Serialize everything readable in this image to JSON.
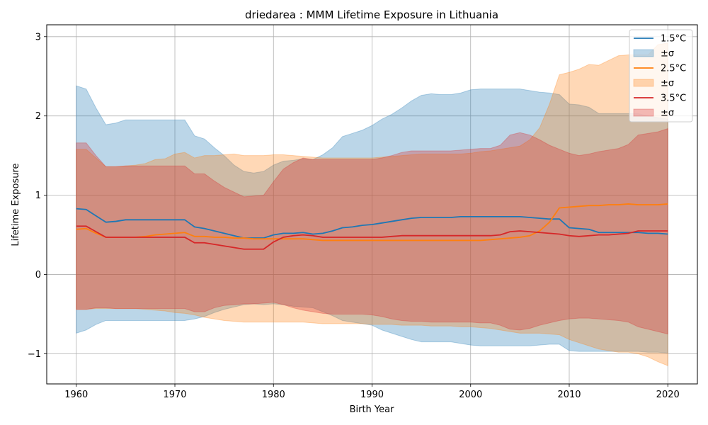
{
  "chart_data": {
    "type": "line",
    "title": "driedarea : MMM Lifetime Exposure in Lithuania",
    "xlabel": "Birth Year",
    "ylabel": "Lifetime Exposure",
    "xlim": [
      1957,
      2023
    ],
    "ylim": [
      -1.38,
      3.15
    ],
    "xticks": [
      1960,
      1970,
      1980,
      1990,
      2000,
      2010,
      2020
    ],
    "yticks": [
      -1,
      0,
      1,
      2,
      3
    ],
    "ytick_labels": [
      "−1",
      "0",
      "1",
      "2",
      "3"
    ],
    "grid": true,
    "legend_position": "top-right",
    "x": [
      1960,
      1961,
      1962,
      1963,
      1964,
      1965,
      1966,
      1967,
      1968,
      1969,
      1970,
      1971,
      1972,
      1973,
      1974,
      1975,
      1976,
      1977,
      1978,
      1979,
      1980,
      1981,
      1982,
      1983,
      1984,
      1985,
      1986,
      1987,
      1988,
      1989,
      1990,
      1991,
      1992,
      1993,
      1994,
      1995,
      1996,
      1997,
      1998,
      1999,
      2000,
      2001,
      2002,
      2003,
      2004,
      2005,
      2006,
      2007,
      2008,
      2009,
      2010,
      2011,
      2012,
      2013,
      2014,
      2015,
      2016,
      2017,
      2018,
      2019,
      2020
    ],
    "series": [
      {
        "name": "1.5°C",
        "band_label": "±σ",
        "color": "#1f77b4",
        "mean": [
          0.83,
          0.82,
          0.74,
          0.66,
          0.67,
          0.69,
          0.69,
          0.69,
          0.69,
          0.69,
          0.69,
          0.69,
          0.6,
          0.58,
          0.55,
          0.52,
          0.49,
          0.46,
          0.46,
          0.46,
          0.5,
          0.52,
          0.52,
          0.53,
          0.51,
          0.52,
          0.55,
          0.59,
          0.6,
          0.62,
          0.63,
          0.65,
          0.67,
          0.69,
          0.71,
          0.72,
          0.72,
          0.72,
          0.72,
          0.73,
          0.73,
          0.73,
          0.73,
          0.73,
          0.73,
          0.73,
          0.72,
          0.71,
          0.7,
          0.7,
          0.59,
          0.58,
          0.57,
          0.53,
          0.53,
          0.53,
          0.53,
          0.53,
          0.52,
          0.52,
          0.51
        ],
        "upper": [
          2.38,
          2.34,
          2.1,
          1.89,
          1.91,
          1.95,
          1.95,
          1.95,
          1.95,
          1.95,
          1.95,
          1.95,
          1.75,
          1.71,
          1.6,
          1.5,
          1.38,
          1.3,
          1.28,
          1.3,
          1.38,
          1.43,
          1.44,
          1.46,
          1.45,
          1.51,
          1.6,
          1.74,
          1.78,
          1.82,
          1.88,
          1.96,
          2.02,
          2.1,
          2.19,
          2.26,
          2.28,
          2.27,
          2.27,
          2.29,
          2.33,
          2.34,
          2.34,
          2.34,
          2.34,
          2.34,
          2.32,
          2.3,
          2.29,
          2.27,
          2.15,
          2.14,
          2.11,
          2.03,
          2.03,
          2.03,
          2.03,
          2.03,
          2.0,
          1.98,
          1.96
        ],
        "lower": [
          -0.74,
          -0.7,
          -0.63,
          -0.58,
          -0.58,
          -0.58,
          -0.58,
          -0.58,
          -0.58,
          -0.58,
          -0.58,
          -0.58,
          -0.56,
          -0.53,
          -0.48,
          -0.44,
          -0.41,
          -0.38,
          -0.37,
          -0.38,
          -0.37,
          -0.38,
          -0.4,
          -0.41,
          -0.42,
          -0.47,
          -0.52,
          -0.58,
          -0.6,
          -0.62,
          -0.64,
          -0.7,
          -0.74,
          -0.78,
          -0.82,
          -0.85,
          -0.85,
          -0.85,
          -0.85,
          -0.87,
          -0.89,
          -0.9,
          -0.9,
          -0.9,
          -0.9,
          -0.9,
          -0.9,
          -0.89,
          -0.88,
          -0.88,
          -0.96,
          -0.97,
          -0.97,
          -0.97,
          -0.97,
          -0.97,
          -0.97,
          -0.97,
          -0.98,
          -0.98,
          -0.99
        ]
      },
      {
        "name": "2.5°C",
        "band_label": "±σ",
        "color": "#ff7f0e",
        "mean": [
          0.57,
          0.58,
          0.52,
          0.47,
          0.47,
          0.47,
          0.47,
          0.48,
          0.5,
          0.51,
          0.52,
          0.53,
          0.48,
          0.48,
          0.47,
          0.47,
          0.46,
          0.46,
          0.45,
          0.45,
          0.45,
          0.45,
          0.45,
          0.45,
          0.44,
          0.43,
          0.43,
          0.43,
          0.43,
          0.43,
          0.43,
          0.43,
          0.43,
          0.43,
          0.43,
          0.43,
          0.43,
          0.43,
          0.43,
          0.43,
          0.43,
          0.43,
          0.44,
          0.45,
          0.46,
          0.47,
          0.49,
          0.55,
          0.66,
          0.84,
          0.85,
          0.86,
          0.87,
          0.87,
          0.88,
          0.88,
          0.89,
          0.88,
          0.88,
          0.88,
          0.89
        ],
        "upper": [
          1.58,
          1.58,
          1.47,
          1.36,
          1.36,
          1.37,
          1.38,
          1.4,
          1.45,
          1.46,
          1.52,
          1.54,
          1.47,
          1.5,
          1.5,
          1.51,
          1.52,
          1.5,
          1.5,
          1.5,
          1.51,
          1.51,
          1.5,
          1.49,
          1.48,
          1.47,
          1.47,
          1.47,
          1.47,
          1.47,
          1.47,
          1.48,
          1.49,
          1.5,
          1.51,
          1.52,
          1.52,
          1.52,
          1.52,
          1.52,
          1.53,
          1.55,
          1.56,
          1.58,
          1.6,
          1.62,
          1.7,
          1.85,
          2.15,
          2.52,
          2.55,
          2.59,
          2.65,
          2.64,
          2.7,
          2.76,
          2.77,
          2.77,
          2.77,
          2.9,
          2.92
        ],
        "lower": [
          -0.44,
          -0.44,
          -0.43,
          -0.43,
          -0.43,
          -0.43,
          -0.43,
          -0.44,
          -0.45,
          -0.46,
          -0.48,
          -0.49,
          -0.51,
          -0.54,
          -0.56,
          -0.58,
          -0.59,
          -0.6,
          -0.6,
          -0.6,
          -0.6,
          -0.6,
          -0.6,
          -0.6,
          -0.61,
          -0.62,
          -0.62,
          -0.62,
          -0.62,
          -0.62,
          -0.63,
          -0.63,
          -0.63,
          -0.64,
          -0.64,
          -0.64,
          -0.65,
          -0.65,
          -0.65,
          -0.66,
          -0.66,
          -0.67,
          -0.68,
          -0.7,
          -0.72,
          -0.74,
          -0.74,
          -0.74,
          -0.75,
          -0.76,
          -0.82,
          -0.86,
          -0.9,
          -0.94,
          -0.96,
          -0.98,
          -0.98,
          -1.0,
          -1.04,
          -1.1,
          -1.15
        ]
      },
      {
        "name": "3.5°C",
        "band_label": "±σ",
        "color": "#d62728",
        "mean": [
          0.61,
          0.61,
          0.54,
          0.47,
          0.47,
          0.47,
          0.47,
          0.47,
          0.47,
          0.47,
          0.47,
          0.47,
          0.4,
          0.4,
          0.38,
          0.36,
          0.34,
          0.32,
          0.32,
          0.32,
          0.41,
          0.47,
          0.49,
          0.5,
          0.49,
          0.47,
          0.47,
          0.47,
          0.47,
          0.47,
          0.47,
          0.47,
          0.48,
          0.49,
          0.49,
          0.49,
          0.49,
          0.49,
          0.49,
          0.49,
          0.49,
          0.49,
          0.49,
          0.5,
          0.54,
          0.55,
          0.54,
          0.53,
          0.52,
          0.51,
          0.49,
          0.48,
          0.49,
          0.5,
          0.5,
          0.51,
          0.52,
          0.55,
          0.55,
          0.55,
          0.55
        ],
        "upper": [
          1.66,
          1.66,
          1.5,
          1.36,
          1.36,
          1.37,
          1.37,
          1.37,
          1.37,
          1.37,
          1.37,
          1.37,
          1.27,
          1.27,
          1.18,
          1.1,
          1.04,
          0.98,
          0.99,
          1.0,
          1.17,
          1.33,
          1.41,
          1.47,
          1.45,
          1.45,
          1.45,
          1.45,
          1.45,
          1.45,
          1.45,
          1.47,
          1.5,
          1.54,
          1.56,
          1.56,
          1.56,
          1.56,
          1.56,
          1.57,
          1.58,
          1.59,
          1.59,
          1.63,
          1.76,
          1.79,
          1.76,
          1.7,
          1.63,
          1.58,
          1.53,
          1.5,
          1.52,
          1.55,
          1.57,
          1.59,
          1.64,
          1.76,
          1.78,
          1.8,
          1.84
        ],
        "lower": [
          -0.44,
          -0.44,
          -0.42,
          -0.42,
          -0.43,
          -0.43,
          -0.43,
          -0.43,
          -0.43,
          -0.43,
          -0.43,
          -0.43,
          -0.47,
          -0.47,
          -0.42,
          -0.39,
          -0.38,
          -0.37,
          -0.37,
          -0.36,
          -0.35,
          -0.38,
          -0.42,
          -0.45,
          -0.47,
          -0.49,
          -0.5,
          -0.5,
          -0.5,
          -0.5,
          -0.51,
          -0.53,
          -0.56,
          -0.58,
          -0.59,
          -0.59,
          -0.6,
          -0.6,
          -0.6,
          -0.6,
          -0.6,
          -0.61,
          -0.61,
          -0.64,
          -0.69,
          -0.7,
          -0.68,
          -0.64,
          -0.61,
          -0.58,
          -0.56,
          -0.55,
          -0.55,
          -0.56,
          -0.57,
          -0.58,
          -0.6,
          -0.66,
          -0.69,
          -0.72,
          -0.75
        ]
      }
    ]
  }
}
